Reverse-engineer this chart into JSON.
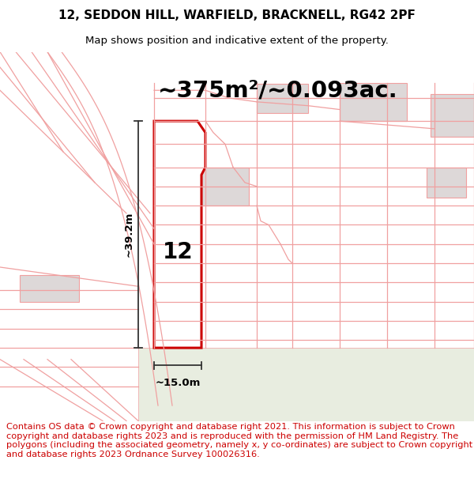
{
  "title_line1": "12, SEDDON HILL, WARFIELD, BRACKNELL, RG42 2PF",
  "title_line2": "Map shows position and indicative extent of the property.",
  "area_text": "~375m²/~0.093ac.",
  "label_number": "12",
  "dim_height": "~39.2m",
  "dim_width": "~15.0m",
  "footer_text": "Contains OS data © Crown copyright and database right 2021. This information is subject to Crown copyright and database rights 2023 and is reproduced with the permission of HM Land Registry. The polygons (including the associated geometry, namely x, y co-ordinates) are subject to Crown copyright and database rights 2023 Ordnance Survey 100026316.",
  "highlight_color": "#cc0000",
  "boundary_color": "#f0a0a0",
  "title_fontsize": 11,
  "subtitle_fontsize": 9.5,
  "area_fontsize": 21,
  "label_fontsize": 20,
  "footer_fontsize": 8.2
}
